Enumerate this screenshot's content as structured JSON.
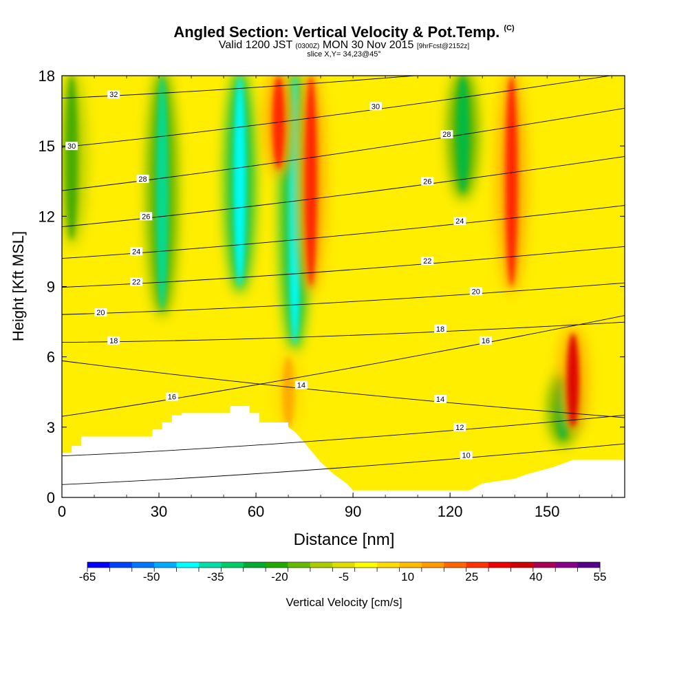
{
  "header": {
    "title": "Angled Section: Vertical Velocity & Pot.Temp.",
    "title_mark": "(C)",
    "valid_prefix": "Valid 1200 JST",
    "valid_utc": "(0300Z)",
    "valid_date": "MON 30 Nov 2015",
    "forecast": "[9hrFcst@2152z]",
    "slice": "slice X,Y= 34,23@45°"
  },
  "chart_data": {
    "type": "heatmap",
    "xlabel": "Distance [nm]",
    "ylabel": "Height [Kft MSL]",
    "xlim": [
      0,
      174
    ],
    "ylim": [
      0,
      18
    ],
    "x_ticks": [
      0,
      30,
      60,
      90,
      120,
      150
    ],
    "y_ticks": [
      0,
      3,
      6,
      9,
      12,
      15,
      18
    ],
    "colorbar": {
      "label": "Vertical Velocity [cm/s]",
      "tick_labels": [
        "-65",
        "-50",
        "-35",
        "-20",
        "-5",
        "10",
        "25",
        "40",
        "55"
      ],
      "colors": [
        "#0000ff",
        "#0044ff",
        "#0077ff",
        "#00aaff",
        "#00ffff",
        "#00ddaa",
        "#00cc66",
        "#00aa33",
        "#22aa00",
        "#66bb00",
        "#aacc00",
        "#dddd00",
        "#ffff00",
        "#ffdd00",
        "#ffbb00",
        "#ff9900",
        "#ff6600",
        "#ff3300",
        "#ee0000",
        "#cc0000",
        "#aa0055",
        "#880088",
        "#550088"
      ]
    },
    "velocity_features": [
      {
        "x": 3,
        "ymin": 11,
        "ymax": 18,
        "value": -15
      },
      {
        "x": 31,
        "ymin": 8,
        "ymax": 18,
        "value": -28
      },
      {
        "x": 55,
        "ymin": 9,
        "ymax": 18,
        "value": -45
      },
      {
        "x": 72,
        "ymin": 6.5,
        "ymax": 18,
        "value": -38
      },
      {
        "x": 77,
        "ymin": 9,
        "ymax": 18,
        "value": 35
      },
      {
        "x": 67,
        "ymin": 14,
        "ymax": 18,
        "value": 35
      },
      {
        "x": 124,
        "ymin": 13,
        "ymax": 18,
        "value": -20
      },
      {
        "x": 139,
        "ymin": 9,
        "ymax": 18,
        "value": 35
      },
      {
        "x": 155,
        "ymin": 2.5,
        "ymax": 5,
        "value": -25
      },
      {
        "x": 158,
        "ymin": 3,
        "ymax": 7,
        "value": 40
      },
      {
        "x": 70,
        "ymin": 3,
        "ymax": 6,
        "value": 20
      }
    ],
    "theta_contours": [
      {
        "value": 10,
        "label_at": [
          125,
          1.8
        ]
      },
      {
        "value": 12,
        "label_at": [
          123,
          3.0
        ]
      },
      {
        "value": 14,
        "label_at": [
          117,
          4.2
        ],
        "label_at2": [
          74,
          4.8
        ]
      },
      {
        "value": 16,
        "label_at": [
          34,
          4.3
        ],
        "label_at2": [
          131,
          6.7
        ]
      },
      {
        "value": 18,
        "label_at": [
          16,
          6.7
        ],
        "label_at2": [
          117,
          7.2
        ]
      },
      {
        "value": 20,
        "label_at": [
          12,
          7.9
        ],
        "label_at2": [
          128,
          8.8
        ]
      },
      {
        "value": 22,
        "label_at": [
          23,
          9.2
        ],
        "label_at2": [
          113,
          10.1
        ]
      },
      {
        "value": 24,
        "label_at": [
          23,
          10.5
        ],
        "label_at2": [
          123,
          11.8
        ]
      },
      {
        "value": 26,
        "label_at": [
          26,
          12.0
        ],
        "label_at2": [
          113,
          13.5
        ]
      },
      {
        "value": 28,
        "label_at": [
          25,
          13.6
        ],
        "label_at2": [
          119,
          15.5
        ]
      },
      {
        "value": 30,
        "label_at": [
          3,
          15.0
        ],
        "label_at2": [
          97,
          16.7
        ]
      },
      {
        "value": 32,
        "label_at": [
          16,
          17.2
        ]
      }
    ],
    "terrain": [
      [
        0,
        1.9
      ],
      [
        3,
        1.9
      ],
      [
        3,
        2.2
      ],
      [
        6,
        2.2
      ],
      [
        6,
        2.6
      ],
      [
        28,
        2.6
      ],
      [
        28,
        2.9
      ],
      [
        31,
        2.9
      ],
      [
        31,
        3.2
      ],
      [
        34,
        3.2
      ],
      [
        34,
        3.5
      ],
      [
        37,
        3.5
      ],
      [
        37,
        3.6
      ],
      [
        52,
        3.6
      ],
      [
        52,
        3.9
      ],
      [
        58,
        3.9
      ],
      [
        58,
        3.6
      ],
      [
        61,
        3.6
      ],
      [
        61,
        3.2
      ],
      [
        70,
        3.2
      ],
      [
        70,
        3.0
      ],
      [
        72,
        2.8
      ],
      [
        74,
        2.5
      ],
      [
        77,
        2.0
      ],
      [
        80,
        1.5
      ],
      [
        84,
        1.0
      ],
      [
        88,
        0.6
      ],
      [
        90,
        0.3
      ],
      [
        120,
        0.3
      ],
      [
        126,
        0.3
      ],
      [
        130,
        0.6
      ],
      [
        140,
        0.8
      ],
      [
        144,
        1.0
      ],
      [
        152,
        1.3
      ],
      [
        158,
        1.6
      ],
      [
        174,
        1.6
      ]
    ]
  }
}
